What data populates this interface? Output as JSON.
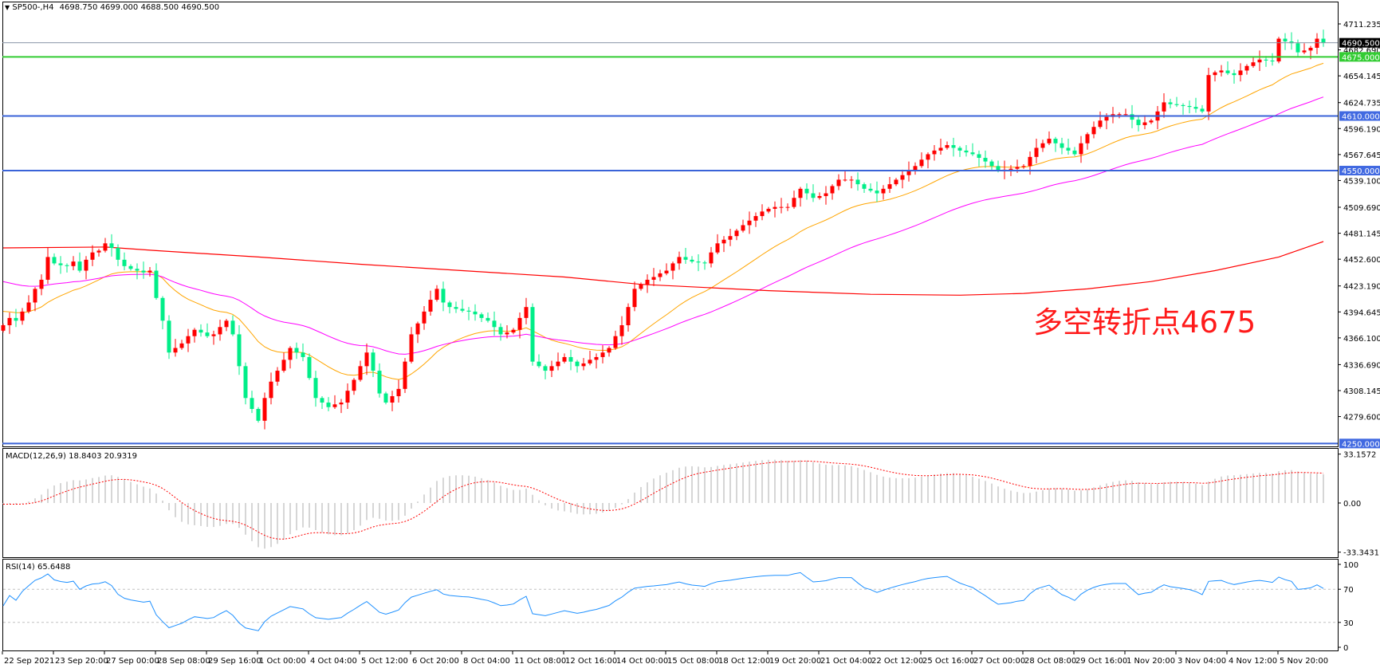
{
  "header": {
    "arrow": "▼",
    "symbol": "SP500-,H4",
    "ohlc": "4698.750 4699.000 4688.500 4690.500"
  },
  "macd": {
    "label": "MACD(12,26,9) 18.8403 20.9319",
    "ticks": [
      "33.1572",
      "0.00",
      "-33.3431"
    ],
    "range": [
      -33.3431,
      33.1572
    ]
  },
  "rsi": {
    "label": "RSI(14) 65.6488",
    "ticks": [
      "100",
      "70",
      "30",
      "0"
    ],
    "levels": [
      70,
      30
    ]
  },
  "annotation": "多空转折点4675",
  "price_axis": {
    "ticks": [
      "4711.235",
      "4682.690",
      "4654.145",
      "4624.735",
      "4596.190",
      "4567.645",
      "4539.100",
      "4509.690",
      "4481.145",
      "4452.600",
      "4423.190",
      "4394.645",
      "4366.100",
      "4336.690",
      "4308.145",
      "4279.600"
    ],
    "range": [
      4250,
      4720
    ]
  },
  "levels": [
    {
      "label": "4690.500",
      "value": 4690.5,
      "color": "#8a96a8",
      "bg": "#000000"
    },
    {
      "label": "4675.000",
      "value": 4675,
      "color": "#33cc33",
      "bg": "#33cc33"
    },
    {
      "label": "4610.000",
      "value": 4610,
      "color": "#3a63d8",
      "bg": "#4169e1"
    },
    {
      "label": "4550.000",
      "value": 4550,
      "color": "#3a63d8",
      "bg": "#4169e1"
    },
    {
      "label": "4250.000",
      "value": 4250,
      "color": "#3a63d8",
      "bg": "#4169e1"
    }
  ],
  "time_axis": [
    "22 Sep 2021",
    "23 Sep 20:00",
    "27 Sep 00:00",
    "28 Sep 08:00",
    "29 Sep 16:00",
    "1 Oct 00:00",
    "4 Oct 04:00",
    "5 Oct 12:00",
    "6 Oct 20:00",
    "8 Oct 04:00",
    "11 Oct 08:00",
    "12 Oct 16:00",
    "14 Oct 00:00",
    "15 Oct 08:00",
    "18 Oct 12:00",
    "19 Oct 20:00",
    "21 Oct 04:00",
    "22 Oct 12:00",
    "25 Oct 16:00",
    "27 Oct 00:00",
    "28 Oct 08:00",
    "29 Oct 16:00",
    "1 Nov 20:00",
    "3 Nov 04:00",
    "4 Nov 12:00",
    "5 Nov 20:00"
  ],
  "colors": {
    "up": "#ff0000",
    "down": "#00ee88",
    "ma_fast": "#ffa500",
    "ma_mid": "#ff00ff",
    "ma_slow": "#ff0000",
    "macd_hist": "#c0c0c0",
    "macd_signal": "#ff0000",
    "rsi": "#1e90ff"
  },
  "closes": [
    4380,
    4388,
    4385,
    4395,
    4405,
    4420,
    4430,
    4455,
    4448,
    4446,
    4445,
    4450,
    4440,
    4452,
    4460,
    4462,
    4470,
    4465,
    4452,
    4445,
    4442,
    4440,
    4438,
    4440,
    4410,
    4385,
    4350,
    4355,
    4360,
    4368,
    4375,
    4372,
    4368,
    4370,
    4378,
    4385,
    4370,
    4335,
    4300,
    4288,
    4275,
    4300,
    4318,
    4330,
    4342,
    4355,
    4350,
    4345,
    4322,
    4300,
    4295,
    4290,
    4293,
    4295,
    4308,
    4320,
    4335,
    4350,
    4330,
    4305,
    4295,
    4302,
    4310,
    4340,
    4370,
    4382,
    4395,
    4408,
    4420,
    4405,
    4400,
    4398,
    4396,
    4395,
    4392,
    4388,
    4385,
    4378,
    4370,
    4372,
    4375,
    4388,
    4400,
    4340,
    4335,
    4330,
    4335,
    4340,
    4345,
    4340,
    4335,
    4338,
    4342,
    4345,
    4350,
    4355,
    4368,
    4380,
    4400,
    4420,
    4425,
    4430,
    4433,
    4437,
    4440,
    4448,
    4455,
    4452,
    4450,
    4449,
    4448,
    4460,
    4470,
    4474,
    4478,
    4484,
    4490,
    4495,
    4500,
    4505,
    4508,
    4510,
    4510,
    4510,
    4520,
    4530,
    4525,
    4520,
    4522,
    4525,
    4533,
    4540,
    4540,
    4540,
    4535,
    4530,
    4528,
    4525,
    4530,
    4535,
    4540,
    4545,
    4550,
    4555,
    4562,
    4568,
    4572,
    4575,
    4578,
    4575,
    4572,
    4570,
    4568,
    4564,
    4560,
    4555,
    4550,
    4551,
    4552,
    4554,
    4555,
    4565,
    4575,
    4580,
    4585,
    4580,
    4575,
    4572,
    4568,
    4580,
    4590,
    4598,
    4605,
    4609,
    4612,
    4612,
    4612,
    4606,
    4600,
    4603,
    4605,
    4615,
    4625,
    4623,
    4622,
    4621,
    4620,
    4618,
    4615,
    4655,
    4658,
    4660,
    4657,
    4655,
    4660,
    4665,
    4669,
    4672,
    4671,
    4670,
    4695,
    4692,
    4690,
    4680,
    4682,
    4685,
    4695,
    4690.5
  ],
  "ma_slow_points": [
    [
      0,
      4465
    ],
    [
      16,
      4466
    ],
    [
      24,
      4462
    ],
    [
      40,
      4455
    ],
    [
      56,
      4447
    ],
    [
      72,
      4440
    ],
    [
      88,
      4433
    ],
    [
      100,
      4425
    ],
    [
      120,
      4418
    ],
    [
      136,
      4414
    ],
    [
      150,
      4413
    ],
    [
      160,
      4415
    ],
    [
      170,
      4420
    ],
    [
      180,
      4428
    ],
    [
      190,
      4440
    ],
    [
      200,
      4455
    ],
    [
      207,
      4472
    ]
  ]
}
